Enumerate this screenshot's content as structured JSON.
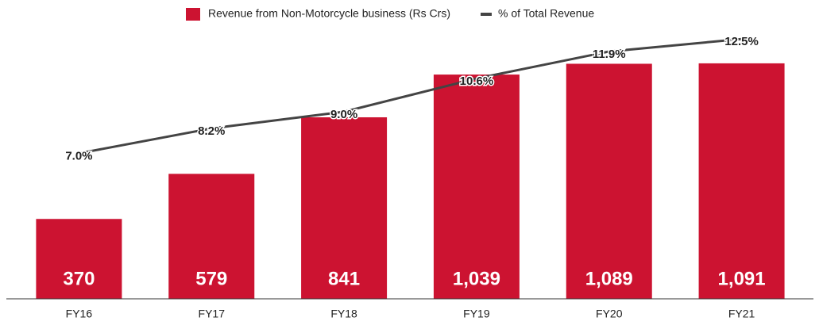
{
  "chart_data": {
    "type": "bar",
    "categories": [
      "FY16",
      "FY17",
      "FY18",
      "FY19",
      "FY20",
      "FY21"
    ],
    "series": [
      {
        "name": "Revenue from Non-Motorcycle business (Rs Crs)",
        "type": "bar",
        "color": "#cc1331",
        "values": [
          370,
          579,
          841,
          1039,
          1089,
          1091
        ],
        "value_labels": [
          "370",
          "579",
          "841",
          "1,039",
          "1,089",
          "1,091"
        ]
      },
      {
        "name": "% of Total Revenue",
        "type": "line",
        "axis": "y2",
        "color": "#444444",
        "values": [
          7.0,
          8.2,
          9.0,
          10.6,
          11.9,
          12.5
        ],
        "value_labels": [
          "7.0%",
          "8.2%",
          "9.0%",
          "10.6%",
          "11.9%",
          "12.5%"
        ]
      }
    ],
    "ylim": [
      0,
      1300
    ],
    "y2lim": [
      0,
      13.5
    ],
    "legend": "top"
  }
}
